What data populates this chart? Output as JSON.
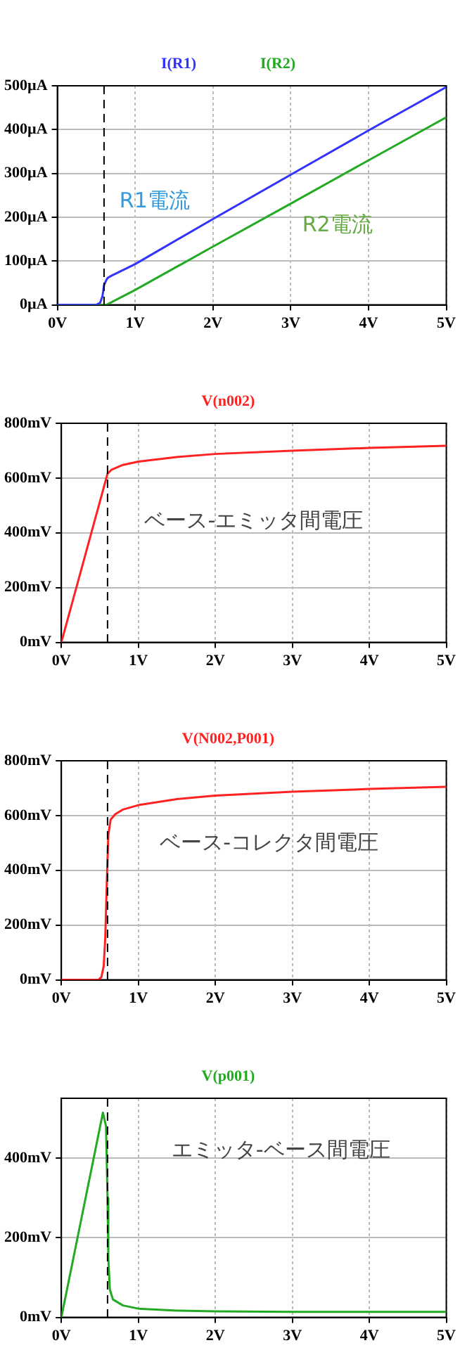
{
  "chart_data": [
    {
      "type": "line",
      "legend": "top",
      "grid": true,
      "xlim": [
        0,
        5
      ],
      "xticks": [
        {
          "value": 0,
          "label": "0V"
        },
        {
          "value": 1,
          "label": "1V"
        },
        {
          "value": 2,
          "label": "2V"
        },
        {
          "value": 3,
          "label": "3V"
        },
        {
          "value": 4,
          "label": "4V"
        },
        {
          "value": 5,
          "label": "5V"
        }
      ],
      "ylim": [
        0,
        500
      ],
      "yticks": [
        {
          "value": 0,
          "label": "0µA"
        },
        {
          "value": 100,
          "label": "100µA"
        },
        {
          "value": 200,
          "label": "200µA"
        },
        {
          "value": 300,
          "label": "300µA"
        },
        {
          "value": 400,
          "label": "400µA"
        },
        {
          "value": 500,
          "label": "500µA"
        }
      ],
      "ref_lines": [
        {
          "axis": "x",
          "value": 0.6,
          "line_style": "dashed",
          "color": "#000000"
        }
      ],
      "annotations": [
        "R1電流",
        "R2電流"
      ],
      "series": [
        {
          "name": "I(R1)",
          "color": "#3333ff",
          "x": [
            0,
            0.5,
            0.55,
            0.58,
            0.6,
            0.63,
            0.65,
            0.7,
            1,
            2,
            3,
            4,
            5
          ],
          "values": [
            0,
            0,
            5,
            20,
            45,
            57,
            62,
            67,
            93,
            196,
            297,
            398,
            497
          ]
        },
        {
          "name": "I(R2)",
          "color": "#22aa22",
          "x": [
            0,
            0.63,
            1,
            2,
            3,
            4,
            5
          ],
          "values": [
            0,
            0,
            34,
            133,
            231,
            330,
            428
          ]
        }
      ]
    },
    {
      "type": "line",
      "legend": "top",
      "grid": true,
      "xlim": [
        0,
        5
      ],
      "xticks": [
        {
          "value": 0,
          "label": "0V"
        },
        {
          "value": 1,
          "label": "1V"
        },
        {
          "value": 2,
          "label": "2V"
        },
        {
          "value": 3,
          "label": "3V"
        },
        {
          "value": 4,
          "label": "4V"
        },
        {
          "value": 5,
          "label": "5V"
        }
      ],
      "ylim": [
        0,
        800
      ],
      "yticks": [
        {
          "value": 0,
          "label": "0mV"
        },
        {
          "value": 200,
          "label": "200mV"
        },
        {
          "value": 400,
          "label": "400mV"
        },
        {
          "value": 600,
          "label": "600mV"
        },
        {
          "value": 800,
          "label": "800mV"
        }
      ],
      "ref_lines": [
        {
          "axis": "x",
          "value": 0.6,
          "line_style": "dashed",
          "color": "#000000"
        }
      ],
      "annotations": [
        "ベース-エミッタ間電圧"
      ],
      "series": [
        {
          "name": "V(n002)",
          "color": "#ff2222",
          "x": [
            0,
            0.6,
            0.65,
            0.8,
            1,
            1.5,
            2,
            3,
            4,
            5
          ],
          "values": [
            0,
            616,
            630,
            648,
            660,
            677,
            688,
            700,
            710,
            718
          ]
        }
      ]
    },
    {
      "type": "line",
      "legend": "top",
      "grid": true,
      "xlim": [
        0,
        5
      ],
      "xticks": [
        {
          "value": 0,
          "label": "0V"
        },
        {
          "value": 1,
          "label": "1V"
        },
        {
          "value": 2,
          "label": "2V"
        },
        {
          "value": 3,
          "label": "3V"
        },
        {
          "value": 4,
          "label": "4V"
        },
        {
          "value": 5,
          "label": "5V"
        }
      ],
      "ylim": [
        0,
        800
      ],
      "yticks": [
        {
          "value": 0,
          "label": "0mV"
        },
        {
          "value": 200,
          "label": "200mV"
        },
        {
          "value": 400,
          "label": "400mV"
        },
        {
          "value": 600,
          "label": "600mV"
        },
        {
          "value": 800,
          "label": "800mV"
        }
      ],
      "ref_lines": [
        {
          "axis": "x",
          "value": 0.6,
          "line_style": "dashed",
          "color": "#000000"
        }
      ],
      "annotations": [
        "ベース-コレクタ間電圧"
      ],
      "series": [
        {
          "name": "V(N002,P001)",
          "color": "#ff2222",
          "x": [
            0,
            0.48,
            0.52,
            0.55,
            0.57,
            0.59,
            0.61,
            0.64,
            0.7,
            0.8,
            1,
            1.5,
            2,
            3,
            4,
            5
          ],
          "values": [
            0,
            0,
            10,
            50,
            150,
            350,
            530,
            585,
            605,
            622,
            638,
            660,
            673,
            687,
            697,
            705
          ]
        }
      ]
    },
    {
      "type": "line",
      "legend": "top",
      "grid": true,
      "xlim": [
        0,
        5
      ],
      "xticks": [
        {
          "value": 0,
          "label": "0V"
        },
        {
          "value": 1,
          "label": "1V"
        },
        {
          "value": 2,
          "label": "2V"
        },
        {
          "value": 3,
          "label": "3V"
        },
        {
          "value": 4,
          "label": "4V"
        },
        {
          "value": 5,
          "label": "5V"
        }
      ],
      "ylim": [
        0,
        550
      ],
      "yticks": [
        {
          "value": 0,
          "label": "0mV"
        },
        {
          "value": 200,
          "label": "200mV"
        },
        {
          "value": 400,
          "label": "400mV"
        }
      ],
      "ref_lines": [
        {
          "axis": "x",
          "value": 0.6,
          "line_style": "dashed",
          "color": "#000000"
        }
      ],
      "annotations": [
        "エミッタ-ベース間電圧"
      ],
      "series": [
        {
          "name": "V(p001)",
          "color": "#22aa22",
          "x": [
            0,
            0.54,
            0.58,
            0.6,
            0.61,
            0.63,
            0.67,
            0.8,
            1,
            1.5,
            2,
            3,
            5
          ],
          "values": [
            0,
            514,
            480,
            300,
            150,
            70,
            45,
            30,
            22,
            17,
            15,
            14,
            14
          ]
        }
      ]
    }
  ]
}
